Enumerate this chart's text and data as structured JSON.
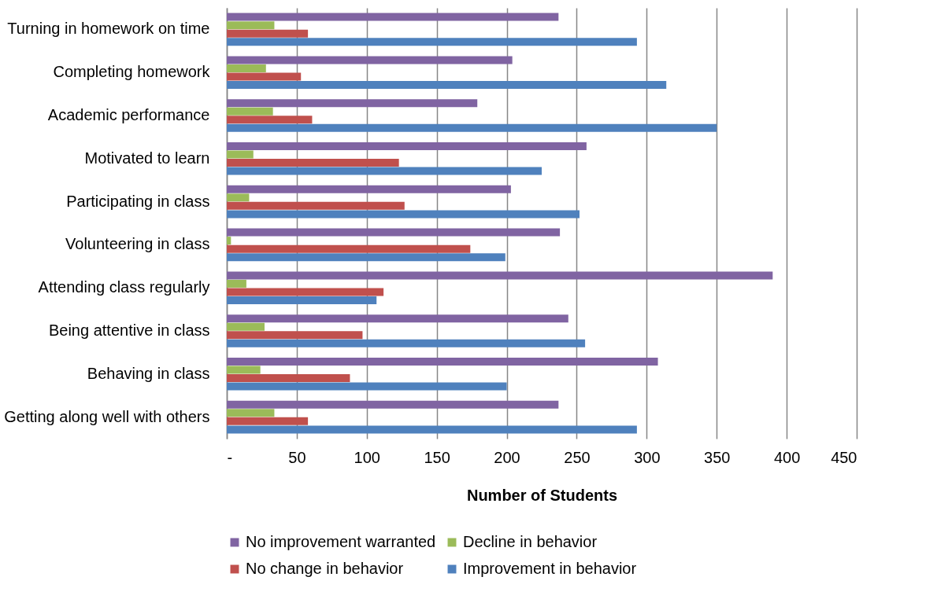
{
  "chart_data": {
    "type": "bar",
    "orientation": "horizontal",
    "xlabel": "Number of Students",
    "categories": [
      "Turning in homework on time",
      "Completing homework",
      "Academic performance",
      "Motivated to learn",
      "Participating in class",
      "Volunteering in class",
      "Attending class regularly",
      "Being attentive in class",
      "Behaving in class",
      "Getting along well with others"
    ],
    "series": [
      {
        "name": "No improvement warranted",
        "color": "#8064a2",
        "values": [
          237,
          204,
          179,
          257,
          203,
          238,
          390,
          244,
          308,
          237
        ]
      },
      {
        "name": "Decline in behavior",
        "color": "#9bbb59",
        "values": [
          34,
          28,
          33,
          19,
          16,
          3,
          14,
          27,
          24,
          34
        ]
      },
      {
        "name": "No change in behavior",
        "color": "#c0504d",
        "values": [
          58,
          53,
          61,
          123,
          127,
          174,
          112,
          97,
          88,
          58
        ]
      },
      {
        "name": "Improvement in behavior",
        "color": "#4f81bd",
        "values": [
          293,
          314,
          350,
          225,
          252,
          199,
          107,
          256,
          200,
          293
        ]
      }
    ],
    "xlim": [
      0,
      450
    ],
    "xticks": [
      {
        "value": 0,
        "label": "-"
      },
      50,
      100,
      150,
      200,
      250,
      300,
      350,
      400,
      450
    ],
    "grid": "x",
    "legend": "bottom"
  }
}
